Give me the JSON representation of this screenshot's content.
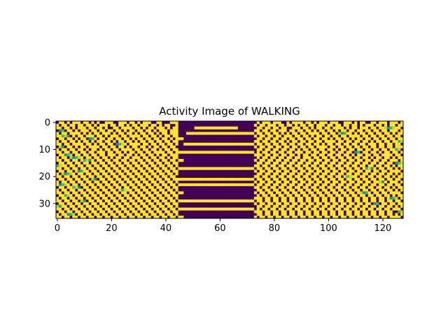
{
  "chart_data": {
    "type": "heatmap",
    "title": "Activity Image of WALKING",
    "xlabel": "",
    "ylabel": "",
    "colormap": "viridis",
    "colors": {
      "low": "#440154",
      "high": "#fde725",
      "mid_high": "#b5de2b",
      "mid": "#35b779",
      "mid_low": "#21918c"
    },
    "n_rows": 36,
    "n_cols": 128,
    "xlim": [
      -0.5,
      127.5
    ],
    "ylim": [
      35.5,
      -0.5
    ],
    "xticks": [
      0,
      20,
      40,
      60,
      80,
      100,
      120
    ],
    "xtick_labels": [
      "0",
      "20",
      "40",
      "60",
      "80",
      "100",
      "120"
    ],
    "yticks": [
      0,
      10,
      20,
      30
    ],
    "ytick_labels": [
      "0",
      "10",
      "20",
      "30"
    ],
    "grid": false,
    "legend": "none",
    "note_values": "binary-dominant pattern: 0 = dark purple, 1 = yellow; values read approximately from image",
    "rows": [
      "01101011101101010011100111011010111001100011100000000000000000000000000000101110111001011110110101110111001110101100110111011101",
      "10110110110110101110110110101101110110101100100000000000000000000000000001011011101101101011011011101101101101101011101101011011",
      "11011010111011011010011011110110101101110101100000011111111111111110000000110110110110011101101011011011110101101110110110110110",
      "01101101011101101101101101011011011010111011100000000000000000000000000001101101101110110110110101101101011011011011011011011101",
      "10110111101010110111010110110101101101011011100011111111111111111111111110110110110101011011011110110110110110101101101101101011",
      "11011010110111011010111011011110110110101101100000000000000000000000000001011011011011101101101011011011011011110110110110110110",
      "01101101011011101101101101101011011011011010111000000000000000000000000000110110110110110110110110110101101101011011011011011011",
      "10110110101101011011010110110101101101101101100000000000000000000000000001101101101101011011011011011110110110110110101101101101",
      "11011011110110101101101011011110110110110110100111111111111111111111111110110110110110110110110110101101101101101101110110110110",
      "01101101011011110110110110101101101011011011000000000000000000000000000001011011011011011011011011110110110110110110110110110111",
      "10110110110101101011011011110110110110101101100000000000000000000000000000110110110110110101101101101101011011011011011011011010",
      "11011011011011011101101101011011011011110110111111111111111111111111111110101101101101101110110110110110110110110110110101101101",
      "01101101101101101101110110110101101101011011100000000000000000000000000001110110110110110101101101101101101101011011011011110110",
      "10110110110110110110101101101110110110110101100000000000000000000000000000101101101101101101110110110110110110110110101101101011",
      "11011011011011011011011011011011011011011011011000000000000000000000000001011011011011011011011011011011011011011011011011011101",
      "01101101101101101101101101101101101101101101100000000000000000000000000000110110110110110110110110110110110110110110110110110110",
      "10110110110110110110110110110110110110110110100000000000000000000000000001101101101101101101101101101101101101101101101101101011",
      "11011011011011011011011011011011011011011011011111111111111111111111111110110110110110110110110110110110110110110110110110110101",
      "01101101101101101101101101101101101101101101100000000000000000000000000001011011011011011011011011011011011011011011011011011110",
      "10110110110110110110110110110110110110110110100000000000000000000000000000110110110110110110110110110110110110110110110110110101",
      "11011011011011011011011011011011011011011011000000000000000000000000000001101101101101101101101101101101101101101101101101101011",
      "01101101101101101101101101101101101101101101111111111111111111111111111110110110110110110110110110110110110110110110110110110110",
      "10110110110110110110110110110110110110110110100000000000000000000000000001011011011011011011011011011011011011011011011011011101",
      "11011011011011011011011011011011011011011011011111111111111111111111111110110110110110110110110110110110110110110110110110110110",
      "01101101101101101101101101101101101101101101100000000000000000000000000001101101101101101101101101101101101101101101101101101011",
      "10110110110110110110110110110110110110110110100000000000000000000000000000110110110110110110110110110110110110110110110110110101",
      "11011011011011011011011011011011011011011011011000000000000000000000000001011011011011011011011011011011011011011011011011011110",
      "01101101101101101101101101101101101101101101100000000000000000000000000000101101101101101101101101101101101101101101101101101011",
      "10110110110110110110110110110110110110110110100000000000000000000000000001110110110110110110110110110110110110110110110110110101",
      "11011011011011011011011011011011011011011011011111111111111111111111111110110110110110110110110110110110110110110110110110110110",
      "01101101101101101101101101101101101101101101100000000000000000000000000001011011011011011011011011011011011011011011011011011011",
      "10110110110110110110110110110110110110110110100000000000000000000000000000110110110110110110110110110110110110110110110110110101",
      "11011011011011011011011011011011011011011011011111111111111111111111111110101101101101101101101101101101101101101101101101101110",
      "01101101101101101101101101101101101101101101100000000000000000000000000001110110110110110110110110110110110110110110110110110011",
      "10110110110110110110110110110110110110110110100000000000000000000000000000110110110110110110110110110110110110110110110110110101",
      "11011011011011011011011011011011011011011011011000000000000000000000000001011011011011011011011011011011011011011011011011011110"
    ],
    "mid_cells": [
      [
        3,
        1,
        2
      ],
      [
        5,
        2,
        3
      ],
      [
        9,
        1,
        2
      ],
      [
        12,
        3,
        3
      ],
      [
        16,
        0,
        2
      ],
      [
        19,
        2,
        4
      ],
      [
        23,
        1,
        3
      ],
      [
        27,
        3,
        2
      ],
      [
        31,
        0,
        2
      ],
      [
        6,
        12,
        2
      ],
      [
        14,
        10,
        3
      ],
      [
        21,
        13,
        2
      ],
      [
        8,
        22,
        3
      ],
      [
        25,
        24,
        2
      ],
      [
        4,
        104,
        3
      ],
      [
        11,
        110,
        2
      ],
      [
        17,
        114,
        3
      ],
      [
        22,
        119,
        2
      ],
      [
        28,
        123,
        3
      ],
      [
        33,
        126,
        2
      ],
      [
        2,
        121,
        4
      ],
      [
        15,
        125,
        3
      ],
      [
        20,
        107,
        2
      ],
      [
        26,
        112,
        3
      ],
      [
        30,
        117,
        2
      ],
      [
        7,
        126,
        4
      ],
      [
        13,
        5,
        4
      ],
      [
        18,
        8,
        2
      ],
      [
        24,
        6,
        3
      ],
      [
        29,
        9,
        2
      ],
      [
        34,
        4,
        3
      ],
      [
        10,
        125,
        2
      ]
    ]
  }
}
